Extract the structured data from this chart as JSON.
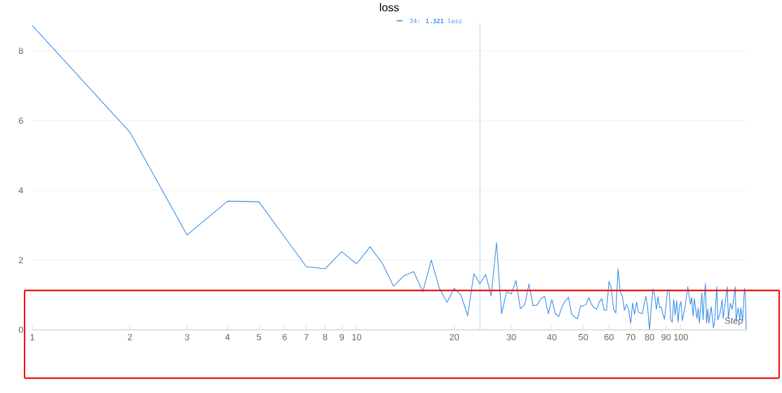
{
  "chart_data": {
    "type": "line",
    "title": "loss",
    "xlabel": "Step",
    "log": "x",
    "grid": "y",
    "xlim": [
      1,
      159
    ],
    "ylim": [
      0,
      8.8
    ],
    "xticks": [
      1,
      2,
      3,
      4,
      5,
      6,
      7,
      8,
      9,
      10,
      20,
      30,
      40,
      50,
      60,
      70,
      80,
      90,
      100
    ],
    "yticks": [
      0,
      2,
      4,
      6,
      8
    ],
    "x": [
      1,
      2,
      3,
      4,
      5,
      6,
      7,
      8,
      9,
      10,
      11,
      12,
      13,
      14,
      15,
      16,
      17,
      18,
      19,
      20,
      21,
      22,
      23,
      24,
      25,
      26,
      27,
      28,
      29,
      30,
      31,
      32,
      33,
      34,
      35,
      36,
      37,
      38,
      39,
      40,
      41,
      42,
      43,
      44,
      45,
      46,
      47,
      48,
      49,
      50,
      51,
      52,
      53,
      54,
      55,
      56,
      57,
      58,
      59,
      60,
      61,
      62,
      63,
      64,
      65,
      66,
      67,
      68,
      69,
      70,
      71,
      72,
      73,
      74,
      75,
      76,
      77,
      78,
      79,
      80,
      81,
      82,
      83,
      84,
      85,
      86,
      87,
      88,
      89,
      90,
      91,
      92,
      93,
      94,
      95,
      96,
      97,
      98,
      99,
      100,
      101,
      103,
      105,
      107,
      108,
      109,
      110,
      112,
      113,
      114,
      116,
      117,
      118,
      119,
      120,
      121,
      122,
      124,
      126,
      127,
      129,
      130,
      132,
      134,
      135,
      137,
      139,
      140,
      142,
      144,
      147,
      148,
      150,
      152,
      153,
      155,
      157,
      158,
      159
    ],
    "series": [
      {
        "color": "#3a8ee6",
        "values": [
          8.73,
          5.67,
          2.72,
          3.69,
          3.67,
          2.66,
          1.81,
          1.75,
          2.24,
          1.89,
          2.38,
          1.91,
          1.25,
          1.55,
          1.67,
          1.09,
          2.0,
          1.19,
          0.79,
          1.19,
          0.99,
          0.4,
          1.61,
          1.32,
          1.59,
          0.97,
          2.5,
          0.46,
          1.09,
          1.03,
          1.41,
          0.6,
          0.72,
          1.31,
          0.69,
          0.71,
          0.89,
          0.96,
          0.46,
          0.87,
          0.46,
          0.38,
          0.66,
          0.83,
          0.93,
          0.46,
          0.36,
          0.32,
          0.67,
          0.69,
          0.73,
          0.93,
          0.73,
          0.63,
          0.59,
          0.79,
          0.89,
          0.56,
          0.56,
          1.39,
          1.19,
          0.59,
          0.48,
          1.75,
          1.09,
          0.96,
          0.56,
          0.73,
          0.58,
          0.18,
          0.77,
          0.44,
          0.79,
          0.5,
          0.48,
          0.46,
          0.73,
          0.96,
          0.63,
          0.0,
          0.67,
          1.17,
          0.99,
          0.59,
          0.95,
          0.63,
          0.65,
          0.44,
          0.3,
          0.73,
          1.13,
          1.15,
          0.28,
          0.22,
          0.87,
          0.42,
          0.83,
          0.22,
          0.67,
          0.81,
          0.26,
          0.66,
          1.23,
          0.73,
          0.93,
          0.39,
          0.89,
          0.32,
          0.63,
          0.19,
          1.06,
          0.29,
          0.93,
          1.33,
          0.19,
          0.59,
          0.19,
          0.66,
          0.05,
          0.22,
          1.23,
          0.29,
          0.46,
          0.86,
          0.32,
          0.79,
          1.23,
          0.32,
          0.76,
          0.59,
          1.23,
          0.26,
          0.63,
          0.29,
          0.63,
          0.26,
          1.19,
          1.03,
          0.0
        ]
      }
    ],
    "ref_lines": [
      {
        "axis": "x",
        "value": 24,
        "color": "#3a8ee6",
        "line_style": "dotted"
      }
    ],
    "annotations": [
      "24: **1.321** loss"
    ]
  }
}
